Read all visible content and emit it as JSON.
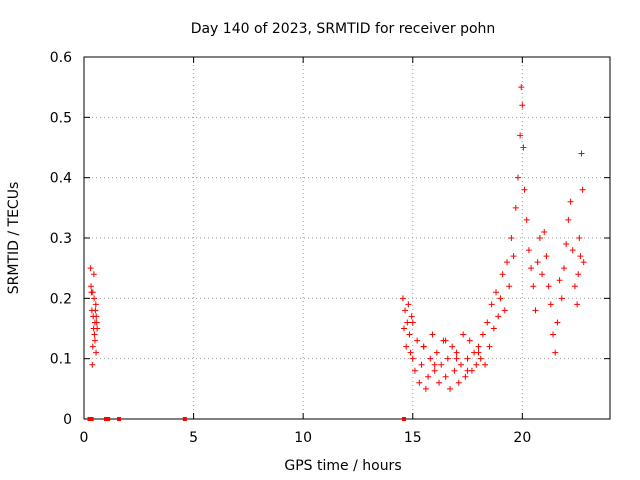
{
  "chart_data": {
    "type": "scatter",
    "title": "Day 140 of 2023, SRMTID for receiver pohn",
    "xlabel": "GPS time / hours",
    "ylabel": "SRMTID / TECUs",
    "xlim": [
      0,
      24
    ],
    "ylim": [
      0,
      0.6
    ],
    "xticks": [
      0,
      5,
      10,
      15,
      20
    ],
    "yticks": [
      0,
      0.1,
      0.2,
      0.3,
      0.4,
      0.5,
      0.6
    ],
    "grid": true,
    "marker": "+",
    "color": "#ff0000",
    "zero_points_x": [
      0.25,
      0.3,
      0.35,
      1.0,
      1.1,
      1.6,
      4.6,
      14.6
    ],
    "series": [
      {
        "name": "SRMTID",
        "x": [
          0.3,
          0.32,
          0.34,
          0.36,
          0.38,
          0.4,
          0.42,
          0.44,
          0.46,
          0.48,
          0.5,
          0.52,
          0.54,
          0.56,
          0.58,
          0.6,
          0.45,
          0.5,
          0.55,
          0.4,
          14.55,
          14.6,
          14.65,
          14.7,
          14.75,
          14.8,
          14.85,
          14.9,
          14.95,
          15.0,
          15.1,
          15.2,
          15.3,
          15.4,
          15.5,
          15.6,
          15.7,
          15.8,
          15.9,
          16.0,
          16.1,
          16.2,
          16.3,
          16.4,
          16.5,
          16.6,
          16.7,
          16.8,
          16.9,
          17.0,
          17.1,
          17.2,
          17.3,
          17.4,
          17.5,
          17.6,
          17.7,
          17.8,
          17.9,
          18.0,
          18.1,
          18.2,
          18.3,
          18.4,
          18.5,
          18.6,
          18.7,
          18.8,
          18.9,
          19.0,
          19.1,
          19.2,
          19.3,
          19.4,
          19.5,
          19.6,
          19.7,
          19.8,
          19.9,
          19.95,
          20.0,
          20.05,
          20.1,
          20.2,
          20.3,
          20.4,
          20.5,
          20.6,
          20.7,
          20.8,
          20.9,
          21.0,
          21.1,
          21.2,
          21.3,
          21.4,
          21.5,
          21.6,
          21.7,
          21.8,
          21.9,
          22.0,
          22.1,
          22.2,
          22.3,
          22.4,
          22.5,
          22.55,
          22.6,
          22.65,
          22.7,
          22.75,
          22.8,
          15.0,
          15.5,
          16.0,
          16.5,
          17.0,
          17.5,
          18.0
        ],
        "y": [
          0.25,
          0.22,
          0.21,
          0.18,
          0.09,
          0.12,
          0.17,
          0.15,
          0.2,
          0.14,
          0.16,
          0.18,
          0.19,
          0.17,
          0.16,
          0.15,
          0.24,
          0.13,
          0.11,
          0.21,
          0.2,
          0.15,
          0.18,
          0.12,
          0.16,
          0.19,
          0.14,
          0.11,
          0.17,
          0.1,
          0.08,
          0.13,
          0.06,
          0.09,
          0.12,
          0.05,
          0.07,
          0.1,
          0.14,
          0.08,
          0.11,
          0.06,
          0.09,
          0.13,
          0.07,
          0.1,
          0.05,
          0.12,
          0.08,
          0.11,
          0.06,
          0.09,
          0.14,
          0.07,
          0.1,
          0.13,
          0.08,
          0.11,
          0.09,
          0.12,
          0.1,
          0.14,
          0.09,
          0.16,
          0.12,
          0.19,
          0.15,
          0.21,
          0.17,
          0.2,
          0.24,
          0.18,
          0.26,
          0.22,
          0.3,
          0.27,
          0.35,
          0.4,
          0.47,
          0.55,
          0.52,
          0.45,
          0.38,
          0.33,
          0.28,
          0.25,
          0.22,
          0.18,
          0.26,
          0.3,
          0.24,
          0.31,
          0.27,
          0.22,
          0.19,
          0.14,
          0.11,
          0.16,
          0.23,
          0.2,
          0.25,
          0.29,
          0.33,
          0.36,
          0.28,
          0.22,
          0.19,
          0.24,
          0.3,
          0.27,
          0.44,
          0.38,
          0.26,
          0.16,
          0.12,
          0.09,
          0.13,
          0.1,
          0.08,
          0.11
        ]
      }
    ]
  }
}
